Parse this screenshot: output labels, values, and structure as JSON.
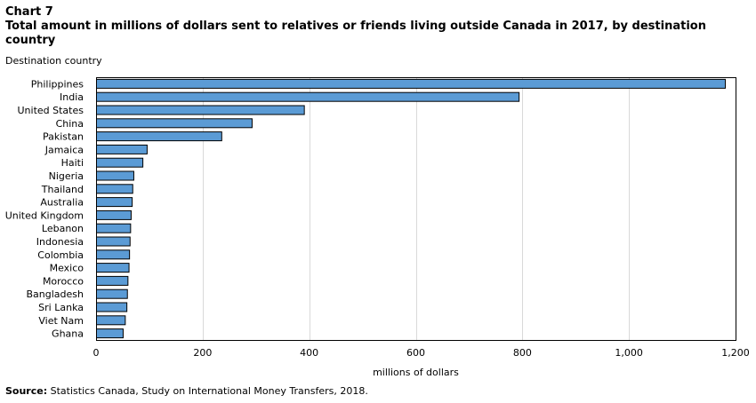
{
  "header": {
    "label": "Chart 7",
    "title": "Total amount in millions of dollars sent to relatives or friends living outside Canada in 2017, by destination country"
  },
  "footer": {
    "source_lead": "Source:",
    "source_text": " Statistics Canada, Study on International Money Transfers, 2018."
  },
  "chart_data": {
    "type": "bar",
    "orientation": "horizontal",
    "title": "Total amount in millions of dollars sent to relatives or friends living outside Canada in 2017, by destination country",
    "ylabel": "Destination country",
    "xlabel": "millions of dollars",
    "xlim": [
      0,
      1200
    ],
    "xticks": [
      0,
      200,
      400,
      600,
      800,
      1000,
      1200
    ],
    "xtick_labels": [
      "0",
      "200",
      "400",
      "600",
      "800",
      "1,000",
      "1,200"
    ],
    "grid": "vertical",
    "legend": "none",
    "bar_color": "#5b9bd5",
    "categories": [
      "Philippines",
      "India",
      "United States",
      "China",
      "Pakistan",
      "Jamaica",
      "Haiti",
      "Nigeria",
      "Thailand",
      "Australia",
      "United Kingdom",
      "Lebanon",
      "Indonesia",
      "Colombia",
      "Mexico",
      "Morocco",
      "Bangladesh",
      "Sri Lanka",
      "Viet Nam",
      "Ghana"
    ],
    "values": [
      1180,
      793,
      390,
      292,
      235,
      95,
      87,
      70,
      68,
      67,
      65,
      64,
      63,
      62,
      61,
      59,
      58,
      57,
      54,
      50
    ]
  }
}
